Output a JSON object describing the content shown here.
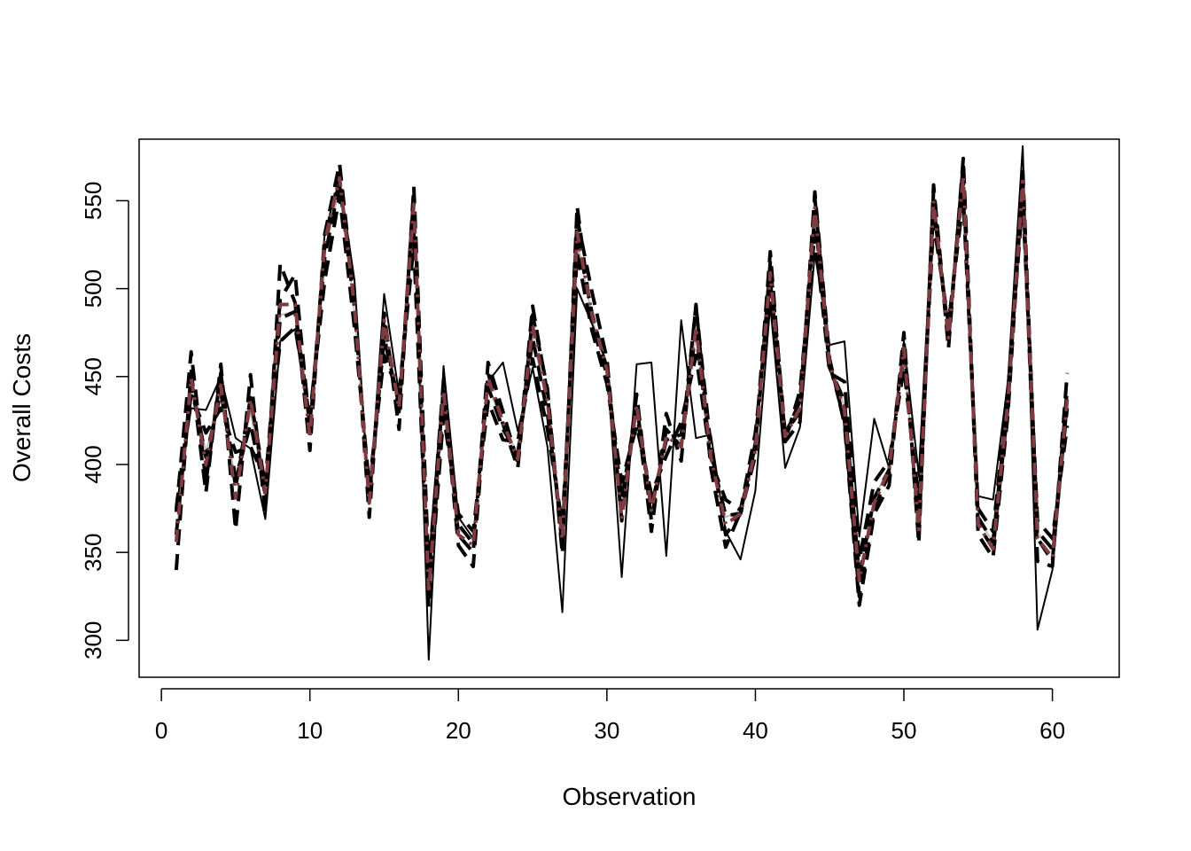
{
  "chart_data": {
    "type": "line",
    "title": "",
    "xlabel": "Observation",
    "ylabel": "Overall Costs",
    "xlim": [
      -1.5,
      64.5
    ],
    "ylim": [
      279,
      585
    ],
    "xticks": [
      0,
      10,
      20,
      30,
      40,
      50,
      60
    ],
    "yticks": [
      300,
      350,
      400,
      450,
      500,
      550
    ],
    "grid": false,
    "legend": "none",
    "x": [
      1,
      2,
      3,
      4,
      5,
      6,
      7,
      8,
      9,
      10,
      11,
      12,
      13,
      14,
      15,
      16,
      17,
      18,
      19,
      20,
      21,
      22,
      23,
      24,
      25,
      26,
      27,
      28,
      29,
      30,
      31,
      32,
      33,
      34,
      35,
      36,
      37,
      38,
      39,
      40,
      41,
      42,
      43,
      44,
      45,
      46,
      47,
      48,
      49,
      50,
      51,
      52,
      53,
      54,
      55,
      56,
      57,
      58,
      59,
      60,
      61
    ],
    "series": [
      {
        "style": "actual",
        "color": "#000000",
        "values": [
          375,
          432,
          431,
          450,
          415,
          409,
          369,
          470,
          477,
          421,
          532,
          562,
          505,
          379,
          497,
          440,
          547,
          289,
          456,
          370,
          358,
          447,
          458,
          419,
          455,
          410,
          316,
          500,
          480,
          457,
          336,
          457,
          458,
          348,
          482,
          415,
          417,
          362,
          346,
          385,
          491,
          398,
          421,
          520,
          468,
          470,
          359,
          426,
          398,
          470,
          394,
          552,
          478,
          561,
          382,
          380,
          447,
          581,
          306,
          340,
          430
        ]
      },
      {
        "style": "dashed-heavy",
        "color": "#000000",
        "values": [
          340,
          453,
          384,
          457,
          363,
          451,
          373,
          514,
          492,
          408,
          531,
          571,
          493,
          370,
          486,
          420,
          558,
          340,
          443,
          354,
          342,
          452,
          423,
          398,
          485,
          443,
          349,
          547,
          480,
          451,
          375,
          432,
          362,
          429,
          402,
          491,
          398,
          353,
          373,
          411,
          521,
          413,
          424,
          555,
          460,
          423,
          320,
          372,
          388,
          475,
          355,
          559,
          466,
          574,
          360,
          347,
          428,
          562,
          345,
          342,
          452
        ]
      },
      {
        "style": "dashed-heavy",
        "color": "#000000",
        "values": [
          373,
          464,
          390,
          452,
          387,
          438,
          388,
          494,
          508,
          420,
          525,
          565,
          491,
          378,
          480,
          430,
          553,
          336,
          448,
          360,
          350,
          458,
          430,
          401,
          490,
          440,
          353,
          540,
          498,
          460,
          368,
          440,
          368,
          420,
          410,
          490,
          410,
          360,
          372,
          405,
          515,
          418,
          430,
          552,
          457,
          425,
          325,
          375,
          395,
          470,
          360,
          556,
          470,
          571,
          366,
          352,
          432,
          568,
          358,
          345,
          443
        ]
      },
      {
        "style": "dashed-heavy",
        "color": "#000000",
        "values": [
          360,
          447,
          404,
          441,
          392,
          423,
          383,
          483,
          487,
          424,
          518,
          560,
          489,
          382,
          472,
          434,
          540,
          327,
          436,
          366,
          355,
          444,
          420,
          406,
          472,
          429,
          359,
          530,
          486,
          454,
          380,
          433,
          376,
          414,
          417,
          475,
          406,
          371,
          372,
          412,
          505,
          417,
          436,
          542,
          455,
          436,
          336,
          381,
          397,
          463,
          371,
          547,
          475,
          561,
          370,
          356,
          437,
          560,
          362,
          352,
          432
        ]
      },
      {
        "style": "dashed-heavy",
        "color": "#000000",
        "values": [
          375,
          440,
          418,
          432,
          407,
          410,
          392,
          470,
          478,
          428,
          505,
          553,
          478,
          388,
          462,
          440,
          525,
          319,
          428,
          372,
          362,
          436,
          414,
          413,
          460,
          420,
          366,
          520,
          476,
          446,
          390,
          422,
          383,
          405,
          424,
          462,
          402,
          380,
          374,
          418,
          495,
          413,
          442,
          532,
          452,
          447,
          346,
          390,
          402,
          455,
          380,
          538,
          480,
          551,
          375,
          362,
          441,
          551,
          368,
          358,
          422
        ]
      },
      {
        "style": "dashed-maroon",
        "color": "#7f3b3f",
        "values": [
          356,
          449,
          400,
          445,
          381,
          437,
          384,
          491,
          491,
          415,
          527,
          563,
          490,
          378,
          482,
          432,
          548,
          327,
          442,
          360,
          354,
          449,
          424,
          403,
          479,
          436,
          357,
          532,
          485,
          454,
          369,
          434,
          374,
          416,
          410,
          478,
          404,
          366,
          372,
          408,
          509,
          416,
          432,
          546,
          457,
          431,
          334,
          378,
          397,
          466,
          363,
          550,
          472,
          564,
          366,
          352,
          435,
          561,
          358,
          347,
          437
        ]
      },
      {
        "style": "light-grey",
        "color": "#bfbfbf",
        "values": [
          358,
          445,
          407,
          440,
          390,
          430,
          386,
          485,
          487,
          420,
          520,
          558,
          487,
          381,
          477,
          435,
          541,
          331,
          438,
          363,
          358,
          445,
          422,
          406,
          474,
          432,
          360,
          528,
          484,
          452,
          374,
          431,
          378,
          414,
          414,
          474,
          405,
          370,
          374,
          411,
          505,
          416,
          434,
          542,
          455,
          433,
          338,
          381,
          398,
          463,
          368,
          546,
          474,
          560,
          369,
          356,
          436,
          557,
          361,
          352,
          433
        ]
      }
    ]
  }
}
